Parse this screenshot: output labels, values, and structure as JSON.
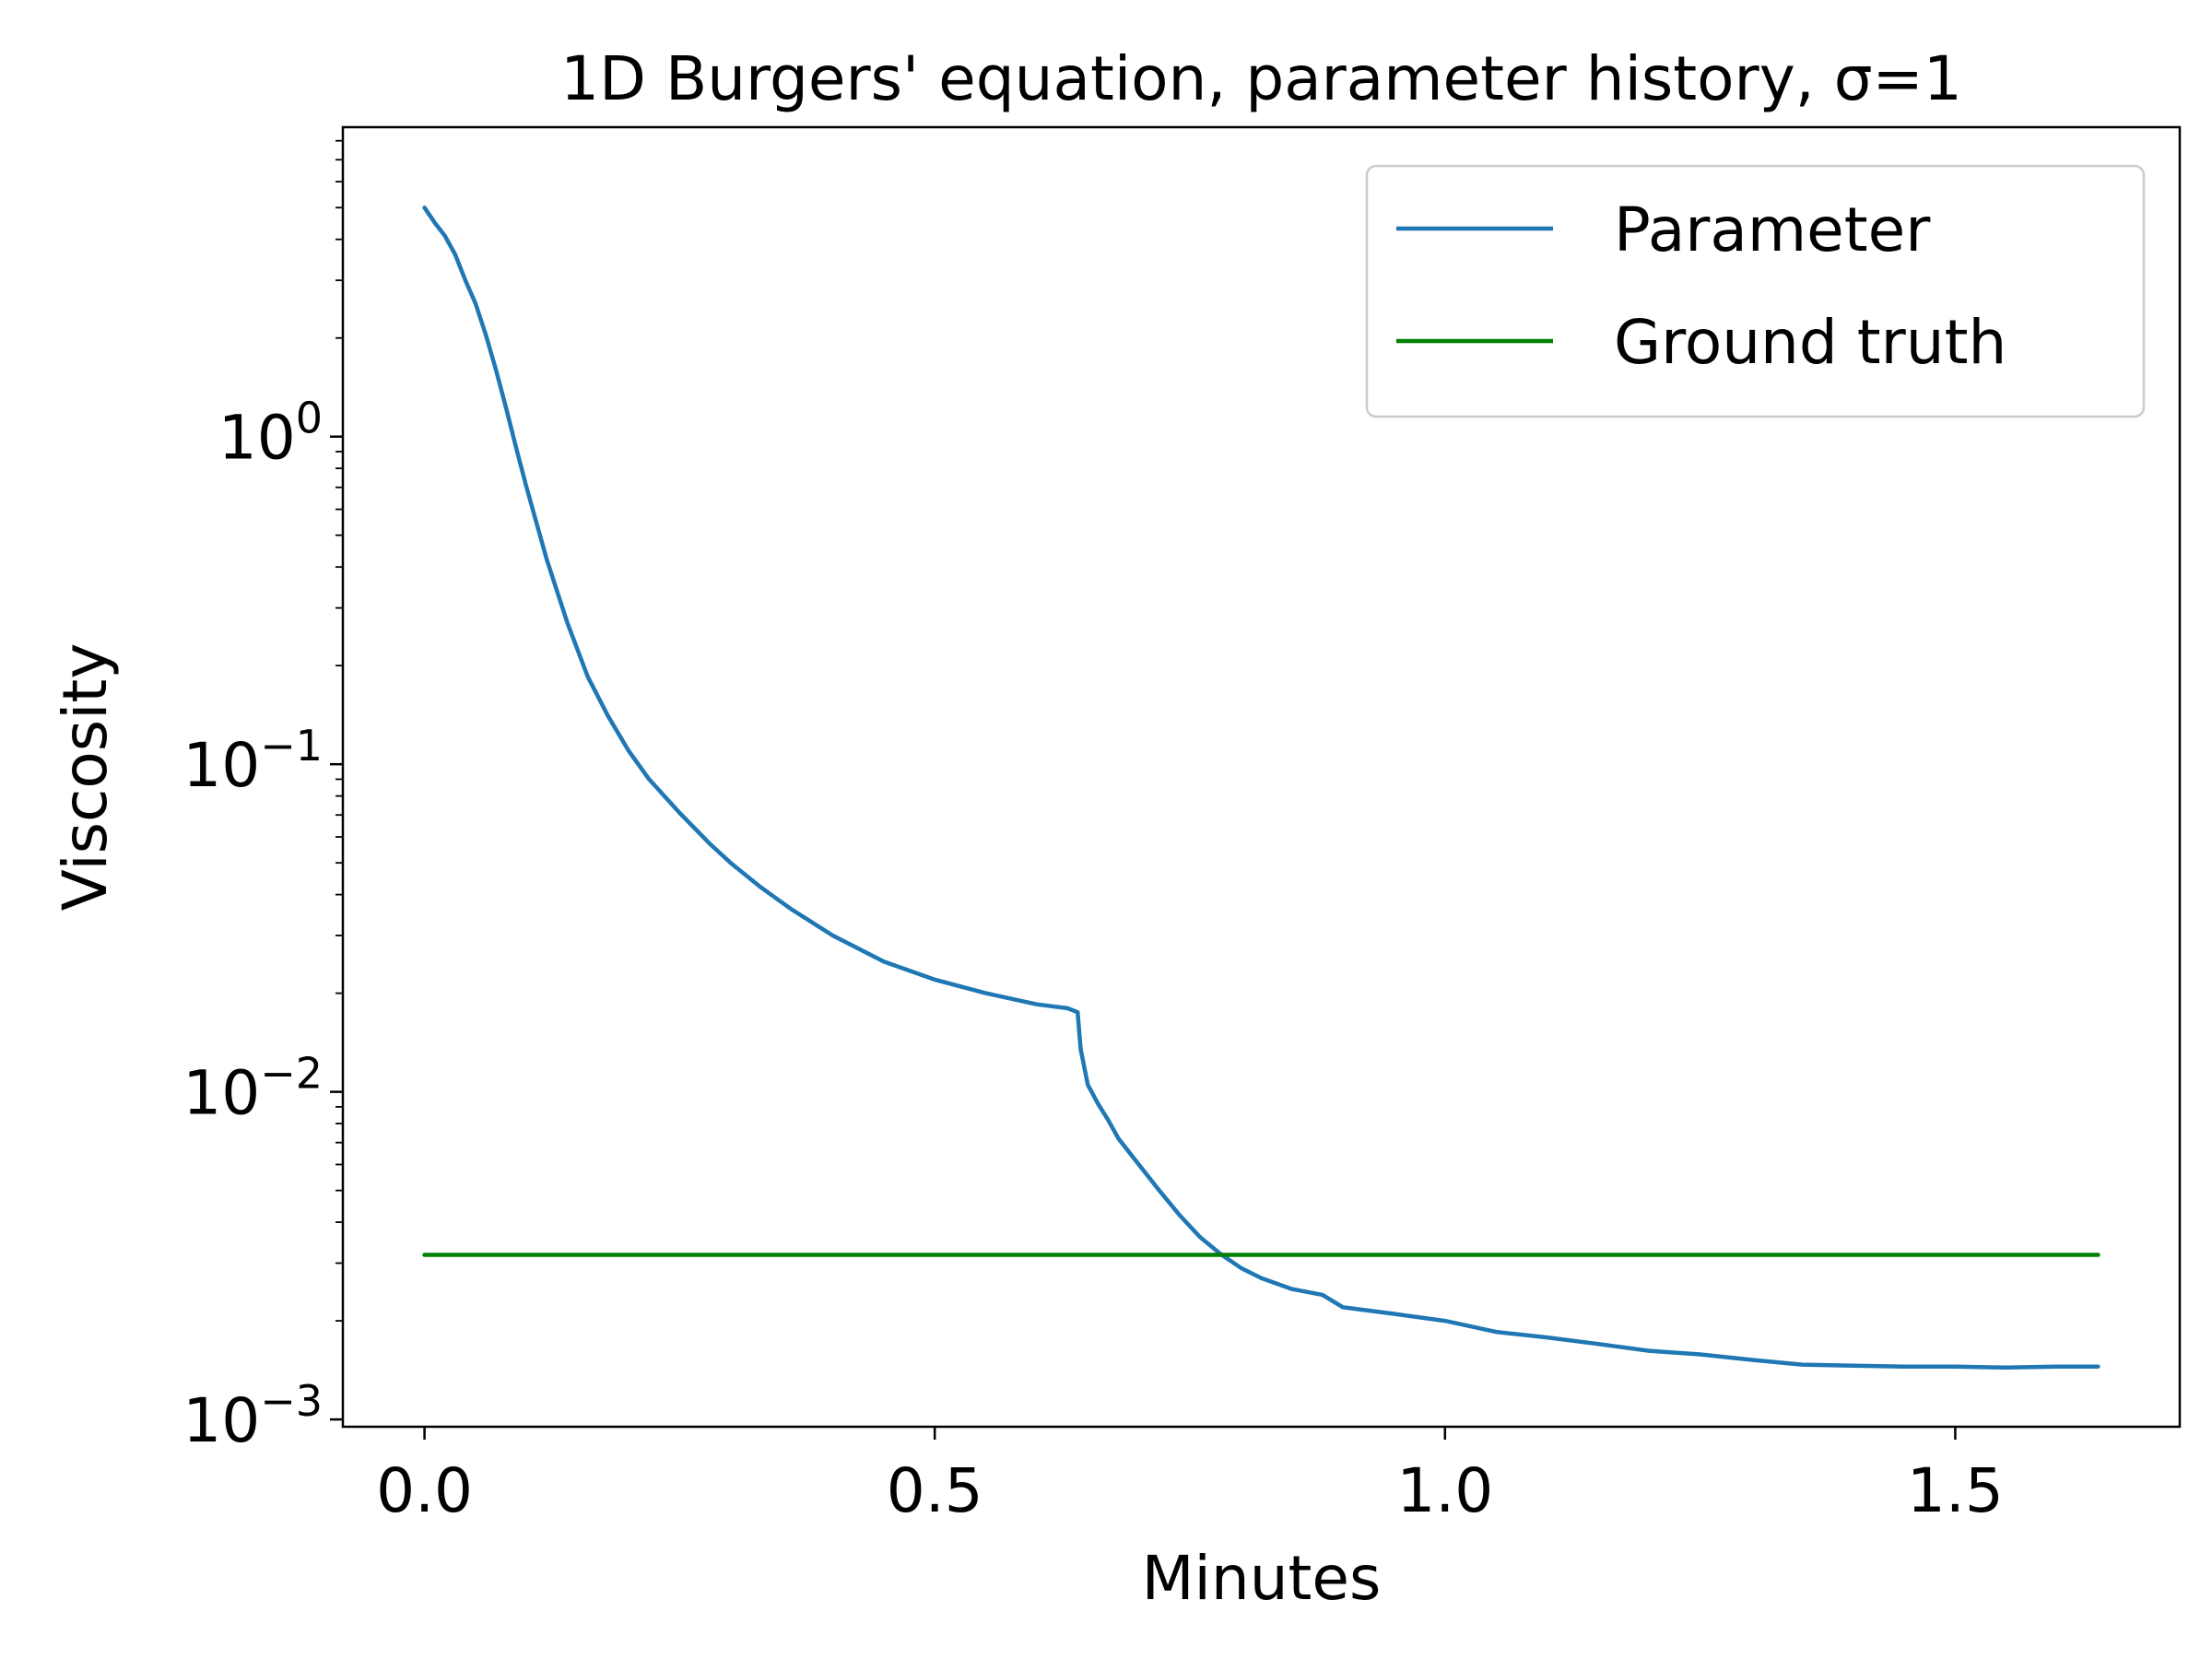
{
  "chart_data": {
    "type": "line",
    "title": "1D Burgers' equation, parameter history, σ=1",
    "xlabel": "Minutes",
    "ylabel": "Viscosity",
    "x_scale": "linear",
    "y_scale": "log",
    "xlim": [
      -0.08,
      1.72
    ],
    "ylim": [
      0.00095,
      8.8
    ],
    "grid": false,
    "legend_position": "upper right",
    "x_ticks": [
      {
        "value": 0.0,
        "label": "0.0"
      },
      {
        "value": 0.5,
        "label": "0.5"
      },
      {
        "value": 1.0,
        "label": "1.0"
      },
      {
        "value": 1.5,
        "label": "1.5"
      }
    ],
    "y_ticks": [
      {
        "value": 1,
        "base": "10",
        "exp": "0"
      },
      {
        "value": 0.1,
        "base": "10",
        "exp": "−1"
      },
      {
        "value": 0.01,
        "base": "10",
        "exp": "−2"
      },
      {
        "value": 0.001,
        "base": "10",
        "exp": "−3"
      }
    ],
    "series": [
      {
        "name": "Parameter",
        "color": "#1f77b4",
        "x": [
          0.0,
          0.01,
          0.02,
          0.03,
          0.04,
          0.05,
          0.06,
          0.07,
          0.08,
          0.09,
          0.1,
          0.12,
          0.14,
          0.16,
          0.18,
          0.2,
          0.22,
          0.25,
          0.28,
          0.3,
          0.33,
          0.36,
          0.4,
          0.45,
          0.5,
          0.55,
          0.6,
          0.63,
          0.64,
          0.643,
          0.65,
          0.66,
          0.67,
          0.68,
          0.7,
          0.72,
          0.74,
          0.76,
          0.78,
          0.8,
          0.82,
          0.85,
          0.88,
          0.9,
          0.95,
          1.0,
          1.05,
          1.1,
          1.15,
          1.2,
          1.25,
          1.3,
          1.35,
          1.4,
          1.45,
          1.5,
          1.55,
          1.6,
          1.64
        ],
        "y": [
          5.0,
          4.5,
          4.1,
          3.6,
          3.0,
          2.55,
          2.05,
          1.6,
          1.22,
          0.92,
          0.7,
          0.42,
          0.27,
          0.185,
          0.14,
          0.11,
          0.09,
          0.071,
          0.057,
          0.05,
          0.042,
          0.036,
          0.03,
          0.025,
          0.022,
          0.02,
          0.0185,
          0.018,
          0.0175,
          0.0135,
          0.0105,
          0.0092,
          0.0082,
          0.0072,
          0.006,
          0.005,
          0.0042,
          0.0036,
          0.0032,
          0.0029,
          0.0027,
          0.0025,
          0.0024,
          0.0022,
          0.0021,
          0.002,
          0.00185,
          0.00178,
          0.0017,
          0.00162,
          0.00158,
          0.00152,
          0.00147,
          0.00146,
          0.00145,
          0.00145,
          0.00144,
          0.00145,
          0.00145
        ]
      },
      {
        "name": "Ground truth",
        "color": "#008000",
        "x": [
          0.0,
          1.64
        ],
        "y": [
          0.00318,
          0.00318
        ]
      }
    ]
  }
}
